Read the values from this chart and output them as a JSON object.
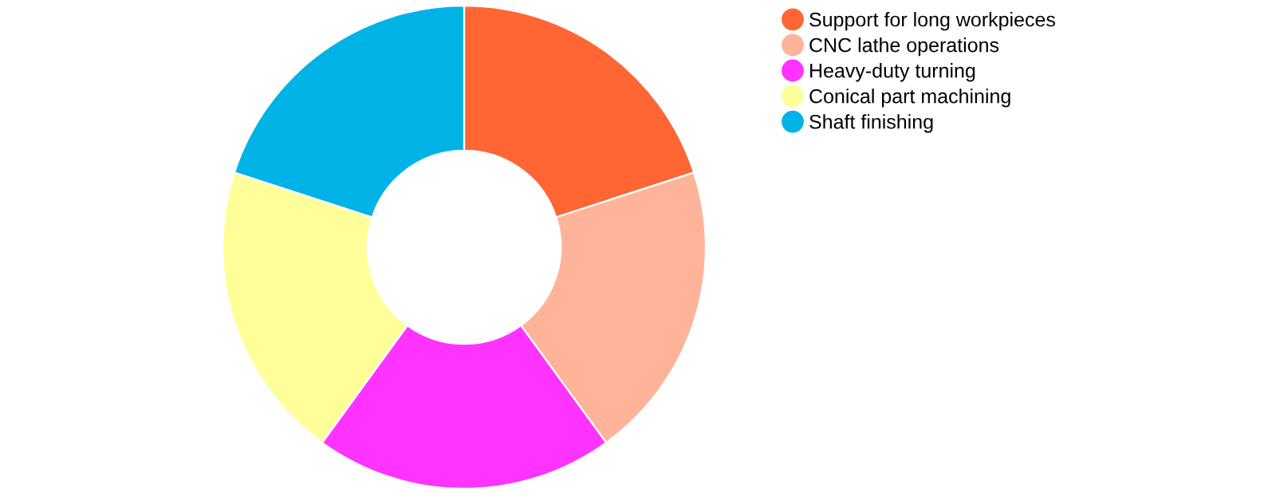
{
  "chart_data": {
    "type": "donut",
    "categories": [
      "Support for long workpieces",
      "CNC lathe operations",
      "Heavy-duty turning",
      "Conical part machining",
      "Shaft finishing"
    ],
    "values": [
      20,
      20,
      20,
      20,
      20
    ],
    "colors": [
      "#ff6633",
      "#ffb399",
      "#ff33ff",
      "#ffff99",
      "#00b3e6"
    ],
    "legend": "top right"
  }
}
